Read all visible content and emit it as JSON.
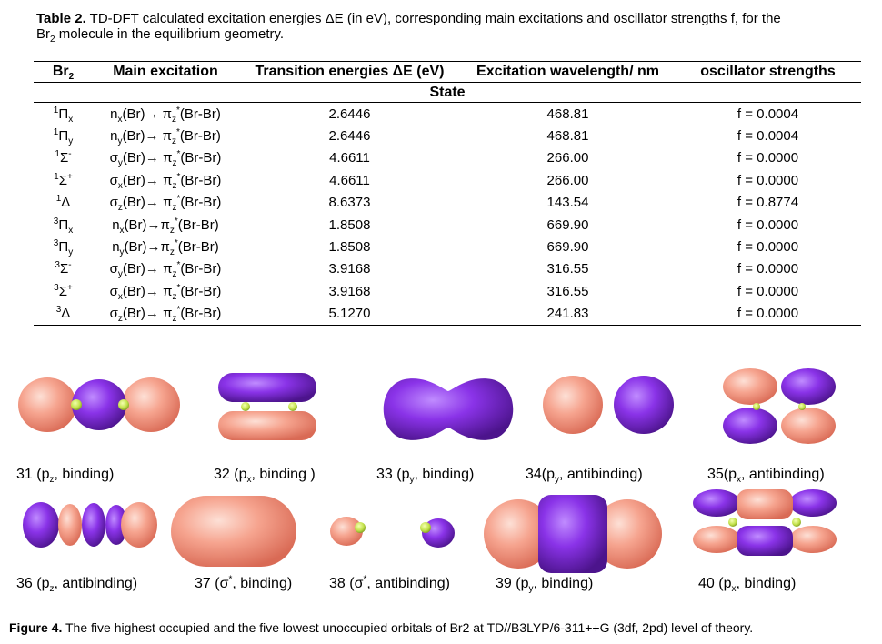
{
  "caption": {
    "label": "Table 2.",
    "text_before": "TD-DFT calculated excitation energies ΔE (in eV), corresponding main excitations and oscillator strengths f, for the",
    "line2_mol": "Br",
    "line2_sub": "2",
    "line2_rest": "molecule in the equilibrium geometry."
  },
  "table": {
    "headers": {
      "col1": "Br",
      "col1_sub": "2",
      "col2": "Main excitation",
      "col3": "Transition energies ΔE (eV)",
      "col4": "Excitation wavelength/ nm",
      "col5": "oscillator strengths"
    },
    "state_header": "State",
    "rows": [
      {
        "mult": "1",
        "sym": "Π",
        "sub": "x",
        "sup2": "",
        "from": "n",
        "from_sub": "x",
        "arrow": "(Br)→ π",
        "to_sub": "z",
        "to_sup": "*",
        "tail": "(Br-Br)",
        "energy": "2.6446",
        "wavelength": "468.81",
        "f": "f = 0.0004"
      },
      {
        "mult": "1",
        "sym": "Π",
        "sub": "y",
        "sup2": "",
        "from": "n",
        "from_sub": "y",
        "arrow": "(Br)→ π",
        "to_sub": "z",
        "to_sup": "*",
        "tail": "(Br-Br)",
        "energy": "2.6446",
        "wavelength": "468.81",
        "f": "f = 0.0004"
      },
      {
        "mult": "1",
        "sym": "Σ",
        "sub": "",
        "sup2": "-",
        "from": "σ",
        "from_sub": "y",
        "arrow": "(Br)→ π",
        "to_sub": "z",
        "to_sup": "*",
        "tail": "(Br-Br)",
        "energy": "4.6611",
        "wavelength": "266.00",
        "f": "f = 0.0000"
      },
      {
        "mult": "1",
        "sym": "Σ",
        "sub": "",
        "sup2": "+",
        "from": "σ",
        "from_sub": "x",
        "arrow": "(Br)→ π",
        "to_sub": "z",
        "to_sup": "*",
        "tail": "(Br-Br)",
        "energy": "4.6611",
        "wavelength": "266.00",
        "f": "f = 0.0000"
      },
      {
        "mult": "1",
        "sym": "Δ",
        "sub": "",
        "sup2": "",
        "from": "σ",
        "from_sub": "z",
        "arrow": "(Br)→ π",
        "to_sub": "z",
        "to_sup": "*",
        "tail": "(Br-Br)",
        "energy": "8.6373",
        "wavelength": "143.54",
        "f": "f = 0.8774"
      },
      {
        "mult": "3",
        "sym": "Π",
        "sub": "x",
        "sup2": "",
        "from": "n",
        "from_sub": "x",
        "arrow": "(Br)→π",
        "to_sub": "z",
        "to_sup": "*",
        "tail": "(Br-Br)",
        "energy": "1.8508",
        "wavelength": "669.90",
        "f": "f = 0.0000"
      },
      {
        "mult": "3",
        "sym": "Π",
        "sub": "y",
        "sup2": "",
        "from": "n",
        "from_sub": "y",
        "arrow": "(Br)→π",
        "to_sub": "z",
        "to_sup": "*",
        "tail": "(Br-Br)",
        "energy": "1.8508",
        "wavelength": "669.90",
        "f": "f = 0.0000"
      },
      {
        "mult": "3",
        "sym": "Σ",
        "sub": "",
        "sup2": "-",
        "from": "σ",
        "from_sub": "y",
        "arrow": "(Br)→ π",
        "to_sub": "z",
        "to_sup": "*",
        "tail": "(Br-Br)",
        "energy": "3.9168",
        "wavelength": "316.55",
        "f": "f = 0.0000"
      },
      {
        "mult": "3",
        "sym": "Σ",
        "sub": "",
        "sup2": "+",
        "from": "σ",
        "from_sub": "x",
        "arrow": "(Br)→ π",
        "to_sub": "z",
        "to_sup": "*",
        "tail": "(Br-Br)",
        "energy": "3.9168",
        "wavelength": "316.55",
        "f": "f = 0.0000"
      },
      {
        "mult": "3",
        "sym": "Δ",
        "sub": "",
        "sup2": "",
        "from": "σ",
        "from_sub": "z",
        "arrow": "(Br)→ π",
        "to_sub": "z",
        "to_sup": "*",
        "tail": "(Br-Br)",
        "energy": "5.1270",
        "wavelength": "241.83",
        "f": "f = 0.0000"
      }
    ]
  },
  "orbitals": {
    "colors": {
      "pink": "#f49a85",
      "purple": "#7d2ad8",
      "green": "#bde04a"
    },
    "labels": [
      {
        "num": "31 (p",
        "sub": "z",
        "sup": "",
        "rest": ", binding)"
      },
      {
        "num": "32 (p",
        "sub": "x",
        "sup": "",
        "rest": ", binding )"
      },
      {
        "num": "33 (p",
        "sub": "y",
        "sup": "",
        "rest": ", binding)"
      },
      {
        "num": "34(p",
        "sub": "y",
        "sup": "",
        "rest": ", antibinding)"
      },
      {
        "num": "35(p",
        "sub": "x",
        "sup": "",
        "rest": ", antibinding)"
      },
      {
        "num": "36 (p",
        "sub": "z",
        "sup": "",
        "rest": ", antibinding)"
      },
      {
        "num": "37 (σ",
        "sub": "",
        "sup": "*",
        "rest": ", binding)"
      },
      {
        "num": "38 (σ",
        "sub": "",
        "sup": "*",
        "rest": ", antibinding)"
      },
      {
        "num": "39 (p",
        "sub": "y",
        "sup": "",
        "rest": ", binding)"
      },
      {
        "num": "40 (p",
        "sub": "x",
        "sup": "",
        "rest": ", binding)"
      }
    ]
  },
  "figure_caption": {
    "label": "Figure 4.",
    "text": "The five highest occupied and the five lowest unoccupied orbitals of Br2 at TD//B3LYP/6-311++G (3df, 2pd) level of theory."
  }
}
